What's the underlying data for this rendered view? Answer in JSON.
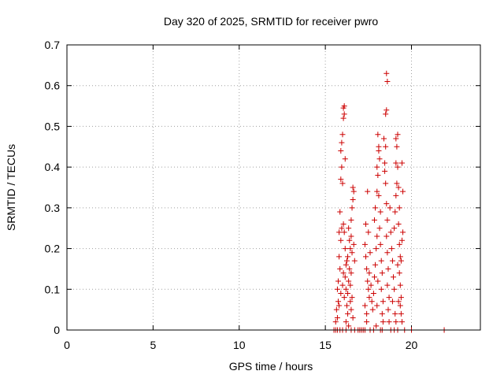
{
  "chart_data": {
    "type": "scatter",
    "title": "Day 320 of 2025, SRMTID for receiver pwro",
    "xlabel": "GPS time / hours",
    "ylabel": "SRMTID / TECUs",
    "xlim": [
      0,
      24
    ],
    "ylim": [
      0,
      0.7
    ],
    "xticks": [
      0,
      5,
      10,
      15,
      20
    ],
    "yticks": [
      0,
      0.1,
      0.2,
      0.3,
      0.4,
      0.5,
      0.6,
      0.7
    ],
    "xtick_labels": [
      "0",
      "5",
      "10",
      "15",
      "20"
    ],
    "ytick_labels": [
      "0",
      "0.1",
      "0.2",
      "0.3",
      "0.4",
      "0.5",
      "0.6",
      "0.7"
    ],
    "grid": true,
    "marker": "+",
    "color": "#cc0000",
    "series": [
      {
        "name": "SRMTID",
        "points": [
          [
            15.5,
            0.0
          ],
          [
            15.6,
            0.0
          ],
          [
            15.7,
            0.0
          ],
          [
            15.85,
            0.0
          ],
          [
            16.0,
            0.0
          ],
          [
            16.2,
            0.0
          ],
          [
            16.5,
            0.0
          ],
          [
            16.7,
            0.0
          ],
          [
            16.9,
            0.0
          ],
          [
            17.0,
            0.0
          ],
          [
            17.1,
            0.0
          ],
          [
            17.2,
            0.0
          ],
          [
            17.3,
            0.0
          ],
          [
            17.6,
            0.0
          ],
          [
            17.8,
            0.0
          ],
          [
            18.2,
            0.0
          ],
          [
            18.3,
            0.0
          ],
          [
            18.8,
            0.0
          ],
          [
            19.0,
            0.0
          ],
          [
            19.2,
            0.0
          ],
          [
            19.6,
            0.0
          ],
          [
            20.0,
            0.0
          ],
          [
            21.9,
            0.0
          ],
          [
            15.6,
            0.02
          ],
          [
            15.7,
            0.03
          ],
          [
            15.8,
            0.06
          ],
          [
            15.9,
            0.09
          ],
          [
            15.75,
            0.12
          ],
          [
            15.85,
            0.15
          ],
          [
            15.8,
            0.18
          ],
          [
            15.9,
            0.22
          ],
          [
            15.95,
            0.25
          ],
          [
            15.85,
            0.29
          ],
          [
            15.9,
            0.37
          ],
          [
            15.95,
            0.4
          ],
          [
            15.9,
            0.44
          ],
          [
            15.95,
            0.46
          ],
          [
            16.0,
            0.48
          ],
          [
            16.05,
            0.52
          ],
          [
            16.1,
            0.53
          ],
          [
            16.05,
            0.545
          ],
          [
            16.1,
            0.55
          ],
          [
            16.15,
            0.42
          ],
          [
            16.0,
            0.36
          ],
          [
            16.05,
            0.26
          ],
          [
            16.1,
            0.24
          ],
          [
            16.15,
            0.2
          ],
          [
            16.2,
            0.16
          ],
          [
            16.15,
            0.13
          ],
          [
            16.2,
            0.1
          ],
          [
            16.1,
            0.08
          ],
          [
            16.25,
            0.06
          ],
          [
            16.3,
            0.04
          ],
          [
            16.2,
            0.02
          ],
          [
            16.35,
            0.01
          ],
          [
            16.3,
            0.09
          ],
          [
            16.35,
            0.12
          ],
          [
            16.4,
            0.15
          ],
          [
            16.3,
            0.18
          ],
          [
            16.45,
            0.2
          ],
          [
            16.4,
            0.22
          ],
          [
            16.35,
            0.25
          ],
          [
            16.5,
            0.27
          ],
          [
            16.55,
            0.3
          ],
          [
            16.6,
            0.32
          ],
          [
            16.65,
            0.34
          ],
          [
            16.6,
            0.35
          ],
          [
            16.5,
            0.23
          ],
          [
            16.55,
            0.19
          ],
          [
            16.5,
            0.14
          ],
          [
            16.45,
            0.11
          ],
          [
            16.55,
            0.08
          ],
          [
            16.5,
            0.05
          ],
          [
            16.6,
            0.03
          ],
          [
            16.65,
            0.21
          ],
          [
            16.7,
            0.17
          ],
          [
            16.45,
            0.07
          ],
          [
            15.7,
            0.1
          ],
          [
            15.75,
            0.07
          ],
          [
            16.0,
            0.11
          ],
          [
            16.05,
            0.14
          ],
          [
            15.65,
            0.05
          ],
          [
            15.8,
            0.24
          ],
          [
            16.25,
            0.17
          ],
          [
            17.3,
            0.21
          ],
          [
            17.35,
            0.18
          ],
          [
            17.4,
            0.15
          ],
          [
            17.45,
            0.12
          ],
          [
            17.5,
            0.1
          ],
          [
            17.55,
            0.08
          ],
          [
            17.3,
            0.06
          ],
          [
            17.4,
            0.04
          ],
          [
            17.35,
            0.26
          ],
          [
            17.45,
            0.34
          ],
          [
            17.5,
            0.24
          ],
          [
            17.6,
            0.19
          ],
          [
            17.55,
            0.14
          ],
          [
            17.65,
            0.11
          ],
          [
            17.4,
            0.02
          ],
          [
            17.7,
            0.07
          ],
          [
            17.75,
            0.05
          ],
          [
            17.8,
            0.09
          ],
          [
            17.85,
            0.13
          ],
          [
            17.9,
            0.16
          ],
          [
            17.95,
            0.2
          ],
          [
            18.0,
            0.23
          ],
          [
            17.85,
            0.27
          ],
          [
            17.9,
            0.3
          ],
          [
            18.0,
            0.34
          ],
          [
            18.05,
            0.38
          ],
          [
            18.0,
            0.4
          ],
          [
            18.1,
            0.44
          ],
          [
            18.05,
            0.48
          ],
          [
            18.1,
            0.45
          ],
          [
            18.15,
            0.42
          ],
          [
            18.1,
            0.33
          ],
          [
            18.2,
            0.29
          ],
          [
            18.15,
            0.25
          ],
          [
            18.2,
            0.21
          ],
          [
            18.25,
            0.17
          ],
          [
            18.3,
            0.14
          ],
          [
            18.25,
            0.1
          ],
          [
            18.35,
            0.07
          ],
          [
            18.3,
            0.04
          ],
          [
            18.35,
            0.02
          ],
          [
            18.0,
            0.06
          ],
          [
            18.05,
            0.12
          ],
          [
            17.95,
            0.01
          ],
          [
            18.4,
            0.47
          ],
          [
            18.45,
            0.41
          ],
          [
            18.5,
            0.36
          ],
          [
            18.55,
            0.31
          ],
          [
            18.6,
            0.27
          ],
          [
            18.55,
            0.23
          ],
          [
            18.6,
            0.19
          ],
          [
            18.65,
            0.15
          ],
          [
            18.6,
            0.11
          ],
          [
            18.7,
            0.08
          ],
          [
            18.65,
            0.05
          ],
          [
            18.7,
            0.02
          ],
          [
            18.5,
            0.53
          ],
          [
            18.55,
            0.54
          ],
          [
            18.6,
            0.61
          ],
          [
            18.55,
            0.63
          ],
          [
            18.5,
            0.45
          ],
          [
            18.45,
            0.39
          ],
          [
            18.75,
            0.3
          ],
          [
            18.8,
            0.24
          ],
          [
            18.85,
            0.2
          ],
          [
            18.9,
            0.17
          ],
          [
            18.95,
            0.13
          ],
          [
            19.0,
            0.1
          ],
          [
            18.9,
            0.07
          ],
          [
            19.05,
            0.04
          ],
          [
            19.1,
            0.02
          ],
          [
            19.0,
            0.25
          ],
          [
            19.05,
            0.29
          ],
          [
            19.1,
            0.33
          ],
          [
            19.15,
            0.36
          ],
          [
            19.1,
            0.41
          ],
          [
            19.15,
            0.45
          ],
          [
            19.2,
            0.48
          ],
          [
            19.1,
            0.47
          ],
          [
            19.2,
            0.4
          ],
          [
            19.25,
            0.35
          ],
          [
            19.3,
            0.3
          ],
          [
            19.25,
            0.26
          ],
          [
            19.3,
            0.21
          ],
          [
            19.35,
            0.18
          ],
          [
            19.3,
            0.14
          ],
          [
            19.35,
            0.11
          ],
          [
            19.4,
            0.08
          ],
          [
            19.35,
            0.06
          ],
          [
            19.4,
            0.04
          ],
          [
            19.45,
            0.02
          ],
          [
            19.4,
            0.17
          ],
          [
            19.45,
            0.22
          ],
          [
            19.5,
            0.24
          ],
          [
            19.45,
            0.41
          ],
          [
            19.5,
            0.34
          ],
          [
            19.2,
            0.16
          ],
          [
            19.25,
            0.07
          ]
        ]
      }
    ]
  }
}
